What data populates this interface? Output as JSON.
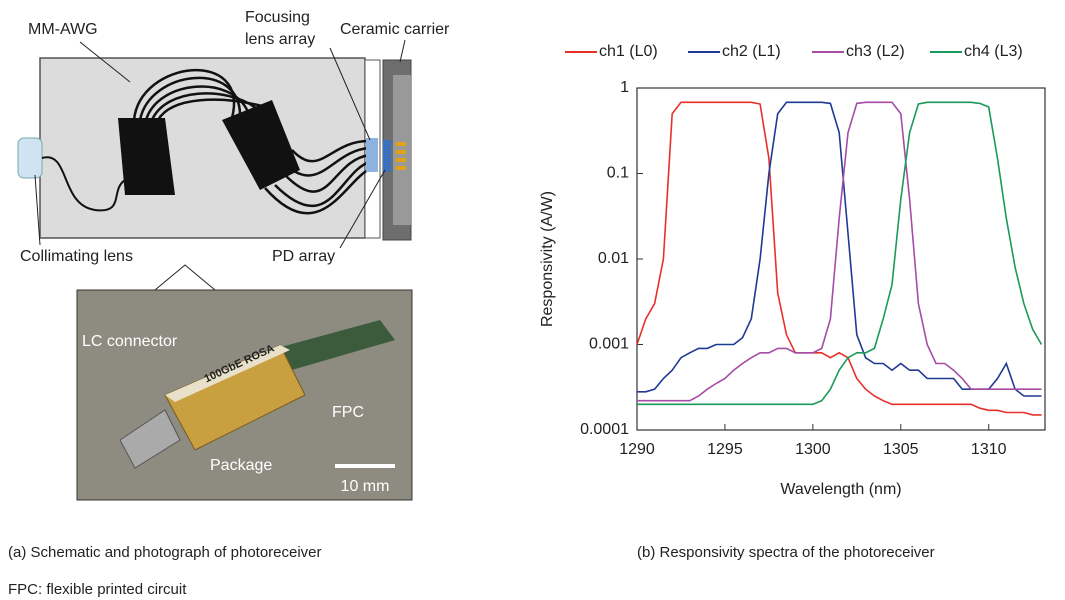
{
  "schematic": {
    "mm_awg": "MM-AWG",
    "focusing_lens_array": [
      "Focusing",
      "lens array"
    ],
    "ceramic_carrier": "Ceramic carrier",
    "collimating_lens": "Collimating lens",
    "pd_array": "PD array"
  },
  "photo": {
    "lc_connector": "LC connector",
    "fpc": "FPC",
    "package": "Package",
    "scale_bar": "10 mm",
    "device_text": "100GbE ROSA"
  },
  "captions": {
    "a": "(a) Schematic and photograph of photoreceiver",
    "note": "FPC: flexible printed circuit",
    "b": "(b) Responsivity spectra of the photoreceiver"
  },
  "chart_data": {
    "type": "line",
    "x_label": "Wavelength (nm)",
    "y_label": "Responsivity (A/W)",
    "y_scale": "log",
    "legend": "top",
    "xlim": [
      1290,
      1313.2
    ],
    "xticks": [
      1290,
      1295,
      1300,
      1305,
      1310
    ],
    "ylim": [
      0.0001,
      1
    ],
    "yticks": [
      0.0001,
      0.001,
      0.01,
      0.1,
      1
    ],
    "x": [
      1290,
      1290.5,
      1291,
      1291.5,
      1292,
      1292.5,
      1293,
      1293.5,
      1294,
      1294.5,
      1295,
      1295.5,
      1296,
      1296.5,
      1297,
      1297.5,
      1298,
      1298.5,
      1299,
      1299.5,
      1300,
      1300.5,
      1301,
      1301.5,
      1302,
      1302.5,
      1303,
      1303.5,
      1304,
      1304.5,
      1305,
      1305.5,
      1306,
      1306.5,
      1307,
      1307.5,
      1308,
      1308.5,
      1309,
      1309.5,
      1310,
      1310.5,
      1311,
      1311.5,
      1312,
      1312.5,
      1313
    ],
    "series": [
      {
        "name": "ch1 (L0)",
        "color": "#e8302a",
        "values": [
          0.001,
          0.002,
          0.003,
          0.01,
          0.5,
          0.68,
          0.68,
          0.68,
          0.68,
          0.68,
          0.68,
          0.68,
          0.68,
          0.68,
          0.65,
          0.15,
          0.004,
          0.0013,
          0.0008,
          0.0008,
          0.0008,
          0.0008,
          0.0007,
          0.0008,
          0.0007,
          0.0004,
          0.0003,
          0.00025,
          0.00022,
          0.0002,
          0.0002,
          0.0002,
          0.0002,
          0.0002,
          0.0002,
          0.0002,
          0.0002,
          0.0002,
          0.0002,
          0.00018,
          0.00017,
          0.00017,
          0.00016,
          0.00016,
          0.00016,
          0.00015,
          0.00015
        ]
      },
      {
        "name": "ch2 (L1)",
        "color": "#1f3a93",
        "values": [
          0.00028,
          0.00028,
          0.0003,
          0.0004,
          0.0005,
          0.0007,
          0.0008,
          0.0009,
          0.0009,
          0.001,
          0.001,
          0.001,
          0.0012,
          0.002,
          0.01,
          0.1,
          0.5,
          0.68,
          0.68,
          0.68,
          0.68,
          0.68,
          0.66,
          0.3,
          0.02,
          0.0013,
          0.0007,
          0.0006,
          0.0006,
          0.0005,
          0.0006,
          0.0005,
          0.0005,
          0.0004,
          0.0004,
          0.0004,
          0.0004,
          0.0003,
          0.0003,
          0.0003,
          0.0003,
          0.0004,
          0.0006,
          0.0003,
          0.00025,
          0.00025,
          0.00025
        ]
      },
      {
        "name": "ch3 (L2)",
        "color": "#a64ca6",
        "values": [
          0.00022,
          0.00022,
          0.00022,
          0.00022,
          0.00022,
          0.00022,
          0.00022,
          0.00025,
          0.0003,
          0.00035,
          0.0004,
          0.0005,
          0.0006,
          0.0007,
          0.0008,
          0.0008,
          0.0009,
          0.0009,
          0.0008,
          0.0008,
          0.0008,
          0.0009,
          0.002,
          0.03,
          0.3,
          0.66,
          0.68,
          0.68,
          0.68,
          0.68,
          0.5,
          0.05,
          0.003,
          0.001,
          0.0006,
          0.0006,
          0.0005,
          0.0004,
          0.0003,
          0.0003,
          0.0003,
          0.0003,
          0.0003,
          0.0003,
          0.0003,
          0.0003,
          0.0003
        ]
      },
      {
        "name": "ch4 (L3)",
        "color": "#1a9a5a",
        "values": [
          0.0002,
          0.0002,
          0.0002,
          0.0002,
          0.0002,
          0.0002,
          0.0002,
          0.0002,
          0.0002,
          0.0002,
          0.0002,
          0.0002,
          0.0002,
          0.0002,
          0.0002,
          0.0002,
          0.0002,
          0.0002,
          0.0002,
          0.0002,
          0.0002,
          0.00022,
          0.0003,
          0.0005,
          0.0007,
          0.0008,
          0.0008,
          0.0009,
          0.002,
          0.005,
          0.05,
          0.3,
          0.65,
          0.68,
          0.68,
          0.68,
          0.68,
          0.68,
          0.68,
          0.66,
          0.6,
          0.15,
          0.03,
          0.008,
          0.003,
          0.0015,
          0.001
        ]
      }
    ]
  }
}
